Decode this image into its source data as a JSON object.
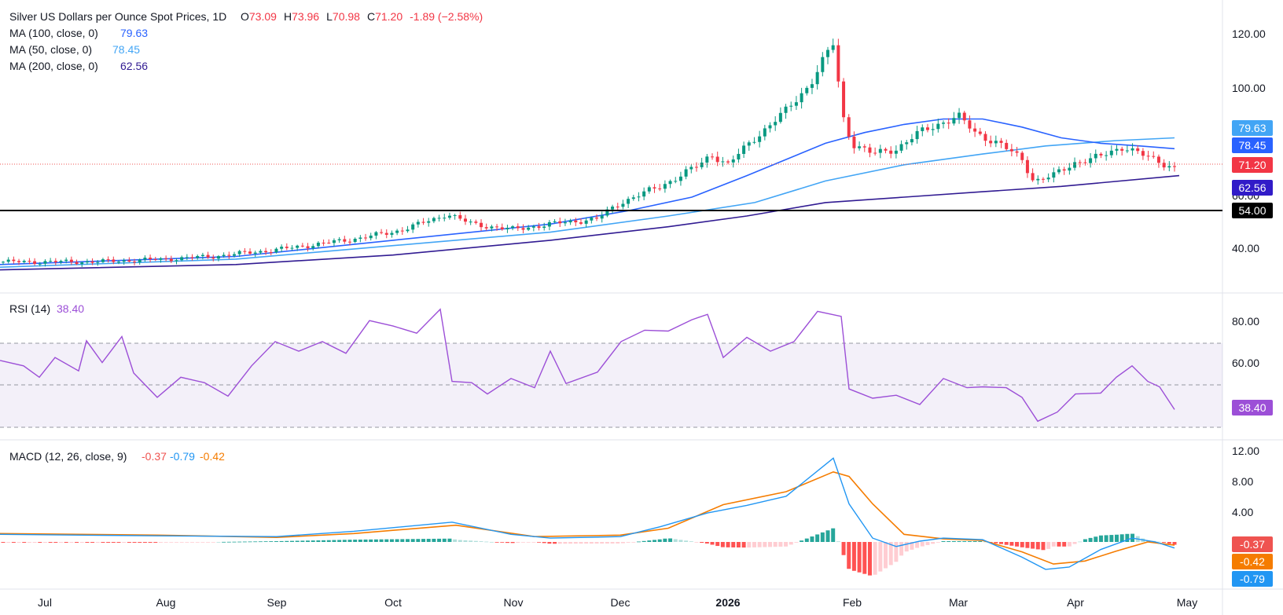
{
  "chart_data": {
    "type": "candlestick",
    "interval": "1D",
    "header": {
      "title": "Silver US Dollars per Ounce Spot Prices, 1D",
      "o_label": "O",
      "o_value": "73.09",
      "h_label": "H",
      "h_value": "73.96",
      "l_label": "L",
      "l_value": "70.98",
      "c_label": "C",
      "c_value": "71.20",
      "change": "-1.89 (−2.58%)"
    },
    "indicators": [
      {
        "label": "MA (100, close, 0)",
        "value": "79.63",
        "color": "#2962ff",
        "badge": "79.63"
      },
      {
        "label": "MA (50, close, 0)",
        "value": "78.45",
        "color": "#42a5f5",
        "badge": "78.45"
      },
      {
        "label": "MA (200, close, 0)",
        "value": "62.56",
        "color": "#311b92",
        "badge": "62.56"
      }
    ],
    "price_axis": {
      "ticks": [
        "120.00",
        "100.00",
        "60.00",
        "40.00"
      ],
      "ylim": [
        30,
        124
      ]
    },
    "last_price": "71.20",
    "support_level": {
      "value": 54,
      "label": "54.00"
    },
    "x_labels": [
      "Jul",
      "Aug",
      "Sep",
      "Oct",
      "Nov",
      "Dec",
      "2026",
      "Feb",
      "Mar",
      "Apr",
      "May"
    ],
    "key_points": [
      {
        "date": "Jul",
        "close": 36
      },
      {
        "date": "Aug",
        "close": 37
      },
      {
        "date": "Sep",
        "close": 40.5
      },
      {
        "date": "Oct",
        "close": 47
      },
      {
        "date": "Oct-mid",
        "close": 54
      },
      {
        "date": "Nov",
        "close": 48
      },
      {
        "date": "Dec",
        "close": 58
      },
      {
        "date": "Dec-late",
        "close": 78
      },
      {
        "date": "2026",
        "close": 72
      },
      {
        "date": "Jan-late",
        "close": 117
      },
      {
        "date": "Feb",
        "close": 80
      },
      {
        "date": "Mar",
        "close": 90
      },
      {
        "date": "Mar-late",
        "close": 66
      },
      {
        "date": "Apr",
        "close": 73
      },
      {
        "date": "Apr-late",
        "close": 71.2
      }
    ],
    "rsi": {
      "label": "RSI (14)",
      "value": "38.40",
      "color": "#9c4fd7",
      "ticks": [
        "80.00",
        "60.00"
      ],
      "upper": 70,
      "middle": 50,
      "lower": 30,
      "ylim": [
        28,
        90
      ],
      "badge": "38.40"
    },
    "macd": {
      "label": "MACD (12, 26, close, 9)",
      "hist_value": "-0.37",
      "macd_value": "-0.79",
      "signal_value": "-0.42",
      "hist_color": "#ef5350",
      "macd_color": "#2196f3",
      "signal_color": "#f57c00",
      "ticks": [
        "12.00",
        "8.00",
        "4.00"
      ],
      "ylim": [
        -5,
        13
      ],
      "badges": [
        "-0.37",
        "-0.42",
        "-0.79"
      ]
    }
  }
}
